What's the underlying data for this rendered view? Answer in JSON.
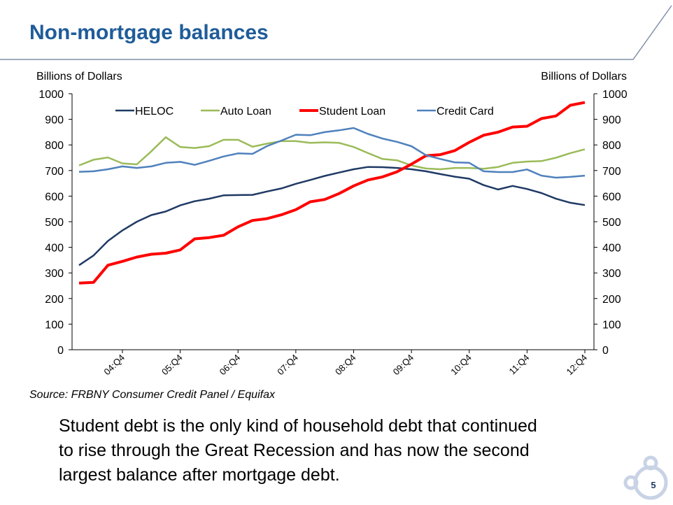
{
  "header": {
    "title": "Non-mortgage balances"
  },
  "chart_data": {
    "type": "line",
    "ylabel": "Billions of Dollars",
    "y2label": "Billions of Dollars",
    "categories": [
      null,
      null,
      null,
      "04:Q4",
      null,
      null,
      null,
      "05:Q4",
      null,
      null,
      null,
      "06:Q4",
      null,
      null,
      null,
      "07:Q4",
      null,
      null,
      null,
      "08:Q4",
      null,
      null,
      null,
      "09:Q4",
      null,
      null,
      null,
      "10:Q4",
      null,
      null,
      null,
      "11:Q4",
      null,
      null,
      null,
      "12:Q4"
    ],
    "ylim": [
      0,
      1000
    ],
    "yticks": [
      0,
      100,
      200,
      300,
      400,
      500,
      600,
      700,
      800,
      900,
      1000
    ],
    "y2lim": [
      0,
      1000
    ],
    "y2ticks": [
      0,
      100,
      200,
      300,
      400,
      500,
      600,
      700,
      800,
      900,
      1000
    ],
    "legend": "top",
    "series": [
      {
        "name": "HELOC",
        "color": "#1f3a64",
        "values": [
          330,
          368,
          425,
          466,
          500,
          526,
          540,
          564,
          580,
          590,
          603,
          604,
          605,
          618,
          630,
          648,
          663,
          679,
          692,
          705,
          714,
          713,
          710,
          705,
          697,
          686,
          676,
          668,
          643,
          626,
          640,
          628,
          612,
          590,
          574,
          565
        ]
      },
      {
        "name": "Auto Loan",
        "color": "#9bbb59",
        "values": [
          720,
          742,
          751,
          728,
          724,
          775,
          830,
          792,
          788,
          795,
          820,
          820,
          793,
          805,
          815,
          815,
          808,
          810,
          808,
          792,
          768,
          745,
          740,
          720,
          708,
          705,
          710,
          710,
          707,
          714,
          730,
          735,
          737,
          750,
          768,
          783
        ]
      },
      {
        "name": "Student Loan",
        "color": "#ff0000",
        "values": [
          260,
          263,
          330,
          345,
          362,
          373,
          377,
          390,
          433,
          438,
          447,
          480,
          505,
          512,
          527,
          547,
          578,
          587,
          610,
          640,
          663,
          675,
          695,
          725,
          758,
          762,
          778,
          810,
          838,
          850,
          870,
          873,
          903,
          913,
          955,
          966
        ]
      },
      {
        "name": "Credit Card",
        "color": "#4f81bd",
        "values": [
          695,
          697,
          705,
          716,
          710,
          716,
          730,
          734,
          722,
          738,
          755,
          767,
          765,
          795,
          817,
          840,
          838,
          850,
          857,
          866,
          843,
          825,
          812,
          795,
          760,
          745,
          732,
          730,
          697,
          694,
          694,
          704,
          680,
          672,
          675,
          680
        ]
      }
    ],
    "source": "Source: FRBNY Consumer Credit Panel / Equifax"
  },
  "body_lines": [
    "Student debt is the only kind of household debt that continued",
    "to rise through the Great Recession and has now the second",
    "largest balance after mortgage debt."
  ],
  "page_number": "5"
}
